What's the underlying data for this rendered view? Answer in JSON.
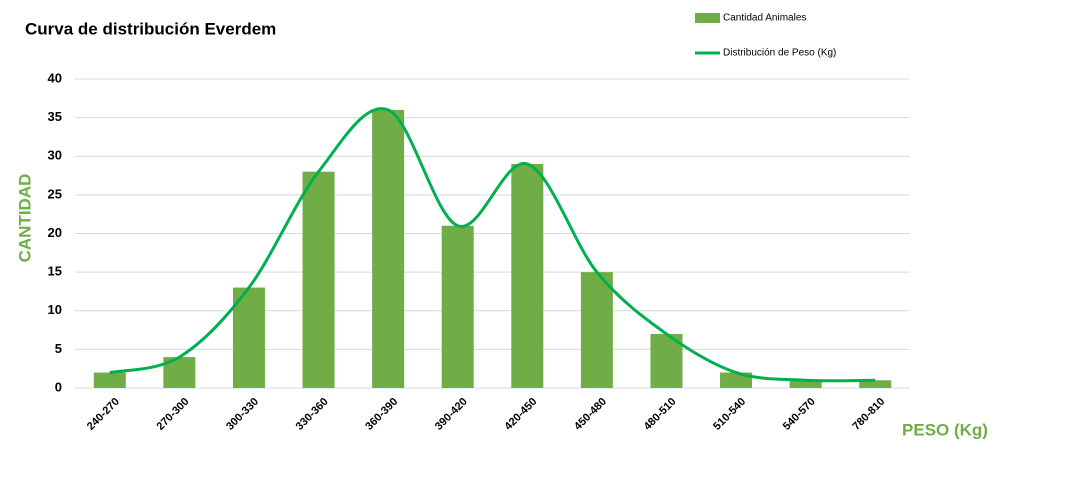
{
  "chart_data": {
    "type": "bar",
    "title": "Curva de distribución Everdem",
    "x_label": "PESO (Kg)",
    "y_label": "CANTIDAD",
    "categories": [
      "240-270",
      "270-300",
      "300-330",
      "330-360",
      "360-390",
      "390-420",
      "420-450",
      "450-480",
      "480-510",
      "510-540",
      "540-570",
      "780-810"
    ],
    "series": [
      {
        "name": "Cantidad Animales",
        "type": "bar",
        "color": "#70ad47",
        "values": [
          2,
          4,
          13,
          28,
          36,
          21,
          29,
          15,
          7,
          2,
          1,
          1
        ]
      },
      {
        "name": "Distribución de Peso (Kg)",
        "type": "line",
        "smooth": true,
        "color": "#00b050",
        "values": [
          2,
          4,
          13,
          28,
          36,
          21,
          29,
          15,
          7,
          2,
          1,
          1
        ]
      }
    ],
    "ylim": [
      0,
      40
    ],
    "yticks": [
      0,
      5,
      10,
      15,
      20,
      25,
      30,
      35,
      40
    ],
    "grid": true,
    "legend": "top-right"
  }
}
